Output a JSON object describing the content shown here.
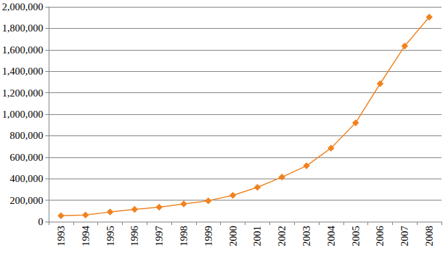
{
  "chart_data": {
    "type": "line",
    "categories": [
      "1993",
      "1994",
      "1995",
      "1996",
      "1997",
      "1998",
      "1999",
      "2000",
      "2001",
      "2002",
      "2003",
      "2004",
      "2005",
      "2006",
      "2007",
      "2008"
    ],
    "values": [
      55000,
      62000,
      90000,
      115000,
      135000,
      165000,
      195000,
      245000,
      320000,
      415000,
      520000,
      685000,
      920000,
      1285000,
      1635000,
      1905000
    ],
    "color": "#f0821e",
    "marker": "diamond",
    "ylim": [
      0,
      2000000
    ],
    "yticks": [
      0,
      200000,
      400000,
      600000,
      800000,
      1000000,
      1200000,
      1400000,
      1600000,
      1800000,
      2000000
    ],
    "grid": true
  }
}
